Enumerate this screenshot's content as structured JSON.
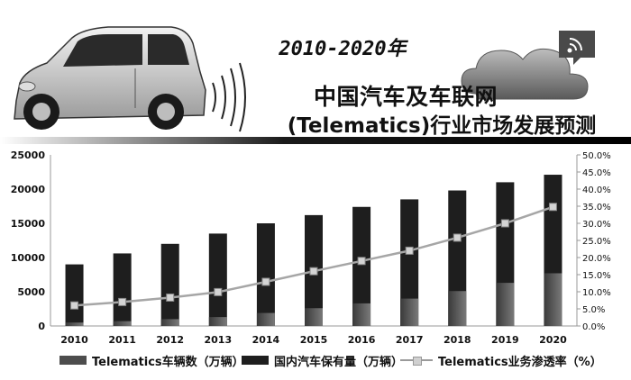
{
  "header": {
    "period": "2010-2020年",
    "title_line1": "中国汽车及车联网",
    "title_line2": "(Telematics)行业市场发展预测"
  },
  "icons": [
    "car-icon",
    "signal-waves-icon",
    "cloud-icon",
    "wifi-badge-icon"
  ],
  "colors": {
    "telematics_bar": "#4d4d4d",
    "domestic_bar": "#1e1e1e",
    "rate_line": "#a6a6a6",
    "rate_marker": "#d4d4d4"
  },
  "chart_data": {
    "type": "bar",
    "categories": [
      "2010",
      "2011",
      "2012",
      "2013",
      "2014",
      "2015",
      "2016",
      "2017",
      "2018",
      "2019",
      "2020"
    ],
    "series": [
      {
        "name": "Telematics车辆数（万辆）",
        "type": "bar",
        "axis": "left",
        "values": [
          500,
          700,
          1000,
          1300,
          1900,
          2600,
          3300,
          4000,
          5100,
          6300,
          7700
        ]
      },
      {
        "name": "国内汽车保有量（万辆）",
        "type": "bar",
        "axis": "left",
        "values": [
          9000,
          10600,
          12000,
          13500,
          15000,
          16200,
          17400,
          18500,
          19800,
          21000,
          22100
        ]
      },
      {
        "name": "Telematics业务渗透率（%）",
        "type": "line",
        "axis": "right",
        "values": [
          6.0,
          7.0,
          8.3,
          9.9,
          12.9,
          16.0,
          19.0,
          22.0,
          25.8,
          30.0,
          34.8
        ]
      }
    ],
    "y_left": {
      "min": 0,
      "max": 25000,
      "ticks": [
        "0",
        "5000",
        "10000",
        "15000",
        "20000",
        "25000"
      ]
    },
    "y_right": {
      "min": 0,
      "max": 50,
      "ticks": [
        "0.0%",
        "5.0%",
        "10.0%",
        "15.0%",
        "20.0%",
        "25.0%",
        "30.0%",
        "35.0%",
        "40.0%",
        "45.0%",
        "50.0%"
      ]
    },
    "legend_position": "bottom",
    "grid": false,
    "xlabel": "",
    "ylabel": ""
  }
}
